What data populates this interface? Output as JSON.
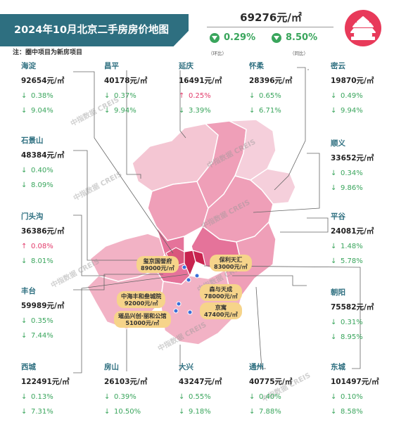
{
  "title": "2024年10月北京二手房房价地图",
  "note": "注：圈中项目为新房项目",
  "summary": {
    "price": "69276元/㎡",
    "mom": "0.29%",
    "mom_label": "（环比）",
    "yoy": "8.50%",
    "yoy_label": "（同比）"
  },
  "watermark": "中指数据 CREIS",
  "districts": {
    "haidian": {
      "name": "海淀",
      "price": "92654元/㎡",
      "mom": "0.38%",
      "mom_dir": "down",
      "yoy": "9.04%",
      "yoy_dir": "down"
    },
    "changping": {
      "name": "昌平",
      "price": "40178元/㎡",
      "mom": "0.37%",
      "mom_dir": "down",
      "yoy": "9.94%",
      "yoy_dir": "down"
    },
    "yanqing": {
      "name": "延庆",
      "price": "16491元/㎡",
      "mom": "0.25%",
      "mom_dir": "up",
      "yoy": "3.39%",
      "yoy_dir": "down"
    },
    "huairou": {
      "name": "怀柔",
      "price": "28396元/㎡",
      "mom": "0.65%",
      "mom_dir": "down",
      "yoy": "6.71%",
      "yoy_dir": "down"
    },
    "miyun": {
      "name": "密云",
      "price": "19870元/㎡",
      "mom": "0.49%",
      "mom_dir": "down",
      "yoy": "9.94%",
      "yoy_dir": "down"
    },
    "shijingshan": {
      "name": "石景山",
      "price": "48384元/㎡",
      "mom": "0.40%",
      "mom_dir": "down",
      "yoy": "8.09%",
      "yoy_dir": "down"
    },
    "shunyi": {
      "name": "顺义",
      "price": "33652元/㎡",
      "mom": "0.34%",
      "mom_dir": "down",
      "yoy": "9.86%",
      "yoy_dir": "down"
    },
    "mentougou": {
      "name": "门头沟",
      "price": "36386元/㎡",
      "mom": "0.08%",
      "mom_dir": "up",
      "yoy": "8.01%",
      "yoy_dir": "down"
    },
    "pinggu": {
      "name": "平谷",
      "price": "24081元/㎡",
      "mom": "1.48%",
      "mom_dir": "down",
      "yoy": "5.78%",
      "yoy_dir": "down"
    },
    "fengtai": {
      "name": "丰台",
      "price": "59989元/㎡",
      "mom": "0.35%",
      "mom_dir": "down",
      "yoy": "7.44%",
      "yoy_dir": "down"
    },
    "chaoyang": {
      "name": "朝阳",
      "price": "75582元/㎡",
      "mom": "0.31%",
      "mom_dir": "down",
      "yoy": "8.95%",
      "yoy_dir": "down"
    },
    "xicheng": {
      "name": "西城",
      "price": "122491元/㎡",
      "mom": "0.13%",
      "mom_dir": "down",
      "yoy": "7.31%",
      "yoy_dir": "down"
    },
    "fangshan": {
      "name": "房山",
      "price": "26103元/㎡",
      "mom": "0.39%",
      "mom_dir": "down",
      "yoy": "10.50%",
      "yoy_dir": "down"
    },
    "daxing": {
      "name": "大兴",
      "price": "43247元/㎡",
      "mom": "0.55%",
      "mom_dir": "down",
      "yoy": "9.18%",
      "yoy_dir": "down"
    },
    "tongzhou": {
      "name": "通州",
      "price": "40775元/㎡",
      "mom": "0.40%",
      "mom_dir": "down",
      "yoy": "7.88%",
      "yoy_dir": "down"
    },
    "dongcheng": {
      "name": "东城",
      "price": "101497元/㎡",
      "mom": "0.10%",
      "mom_dir": "down",
      "yoy": "8.58%",
      "yoy_dir": "down"
    }
  },
  "projects": {
    "jingguofu": {
      "name": "玺京国誉府",
      "price": "89000元/㎡"
    },
    "baolitianhui": {
      "name": "保利天汇",
      "price": "83000元/㎡"
    },
    "senyutiancheng": {
      "name": "森与天成",
      "price": "78000元/㎡"
    },
    "zhonghaifengtai": {
      "name": "中海丰和叁城院",
      "price": "92000元/㎡"
    },
    "jingyu": {
      "name": "京寓",
      "price": "47400元/㎡"
    },
    "cuipinxingchuang": {
      "name": "璀品兴创·丽和公馆",
      "price": "51000元/㎡"
    }
  },
  "colors": {
    "accent": "#2e6f80",
    "down": "#39a55c",
    "up": "#e23a6a",
    "map_light": "#f5cfdb",
    "map_mid": "#ec9fb7",
    "map_dark": "#d9577c",
    "map_core": "#c8244f",
    "project_bg": "#f6d48a"
  }
}
